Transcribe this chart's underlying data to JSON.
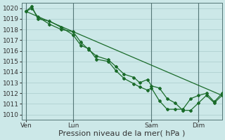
{
  "xlabel": "Pression niveau de la mer( hPa )",
  "background_color": "#cce8e8",
  "grid_color": "#aacccc",
  "line_color": "#1a6b2a",
  "vline_color": "#557777",
  "ylim": [
    1009.5,
    1020.5
  ],
  "yticks": [
    1010,
    1011,
    1012,
    1013,
    1014,
    1015,
    1016,
    1017,
    1018,
    1019,
    1020
  ],
  "xtick_labels": [
    "Ven",
    "Lun",
    "Sam",
    "Dim"
  ],
  "xtick_positions": [
    0,
    24,
    64,
    88
  ],
  "xlim": [
    -2,
    100
  ],
  "vline_positions": [
    0,
    24,
    64,
    88
  ],
  "series_straight": {
    "x": [
      0,
      100
    ],
    "y": [
      1019.7,
      1011.8
    ]
  },
  "series1_x": [
    0,
    3,
    6,
    12,
    18,
    24,
    28,
    32,
    36,
    42,
    46,
    50,
    55,
    58,
    62,
    64,
    68,
    72,
    76,
    80,
    84,
    88,
    92,
    96,
    100
  ],
  "series1_y": [
    1019.7,
    1020.0,
    1019.2,
    1018.5,
    1018.0,
    1017.8,
    1016.8,
    1016.1,
    1015.5,
    1015.15,
    1014.5,
    1013.8,
    1013.5,
    1013.0,
    1013.3,
    1012.7,
    1012.5,
    1011.5,
    1011.1,
    1010.4,
    1010.4,
    1011.1,
    1011.8,
    1011.1,
    1011.8
  ],
  "series2_x": [
    0,
    3,
    6,
    12,
    18,
    24,
    28,
    32,
    36,
    42,
    46,
    50,
    55,
    58,
    62,
    64,
    68,
    72,
    76,
    80,
    84,
    88,
    92,
    96,
    100
  ],
  "series2_y": [
    1019.7,
    1020.2,
    1019.0,
    1018.8,
    1018.2,
    1017.5,
    1016.5,
    1016.2,
    1015.2,
    1015.0,
    1014.1,
    1013.4,
    1012.9,
    1012.6,
    1012.3,
    1012.5,
    1011.3,
    1010.5,
    1010.5,
    1010.5,
    1011.5,
    1011.8,
    1012.0,
    1011.2,
    1012.0
  ],
  "marker": "D",
  "marker_size": 2.0,
  "line_width": 0.9,
  "xlabel_fontsize": 8,
  "tick_fontsize": 6.5
}
